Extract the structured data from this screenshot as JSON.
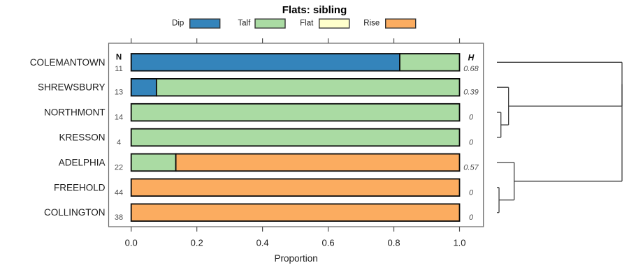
{
  "title": "Flats: sibling",
  "legend": {
    "items": [
      {
        "label": "Dip",
        "color": "#3484bb"
      },
      {
        "label": "Talf",
        "color": "#aadba3"
      },
      {
        "label": "Flat",
        "color": "#ffffcc"
      },
      {
        "label": "Rise",
        "color": "#fbac60"
      }
    ]
  },
  "chart_data": {
    "type": "bar",
    "orientation": "horizontal",
    "stacked": true,
    "title": "Flats: sibling",
    "xlabel": "Proportion",
    "xlim": [
      0,
      1
    ],
    "xticks": [
      0.0,
      0.2,
      0.4,
      0.6,
      0.8,
      1.0
    ],
    "xtick_labels": [
      "0.0",
      "0.2",
      "0.4",
      "0.6",
      "0.8",
      "1.0"
    ],
    "grid": false,
    "legend_position": "top",
    "categories": [
      "COLEMANTOWN",
      "SHREWSBURY",
      "NORTHMONT",
      "KRESSON",
      "ADELPHIA",
      "FREEHOLD",
      "COLLINGTON"
    ],
    "n_header": "N",
    "h_header": "H",
    "n_values": [
      11,
      13,
      14,
      4,
      22,
      44,
      38
    ],
    "h_values": [
      "0.68",
      "0.39",
      "0",
      "0",
      "0.57",
      "0",
      "0"
    ],
    "series": [
      {
        "name": "Dip",
        "color": "#3484bb",
        "values": [
          0.818,
          0.077,
          0,
          0,
          0,
          0,
          0
        ]
      },
      {
        "name": "Talf",
        "color": "#aadba3",
        "values": [
          0.182,
          0.923,
          1,
          1,
          0.136,
          0,
          0
        ]
      },
      {
        "name": "Flat",
        "color": "#ffffcc",
        "values": [
          0,
          0,
          0,
          0,
          0,
          0,
          0
        ]
      },
      {
        "name": "Rise",
        "color": "#fbac60",
        "values": [
          0,
          0,
          0,
          0,
          0.864,
          1,
          1
        ]
      }
    ],
    "dendrogram": {
      "merges": [
        {
          "a": "L2",
          "b": "L3",
          "h": 0.032
        },
        {
          "a": "L1",
          "b": "M0",
          "h": 0.093
        },
        {
          "a": "L0",
          "b": "M1",
          "h": 1.0
        },
        {
          "a": "L5",
          "b": "L6",
          "h": 0.017
        },
        {
          "a": "L4",
          "b": "M3",
          "h": 0.138
        },
        {
          "a": "M2",
          "b": "M4",
          "h": 1.0
        }
      ]
    }
  }
}
